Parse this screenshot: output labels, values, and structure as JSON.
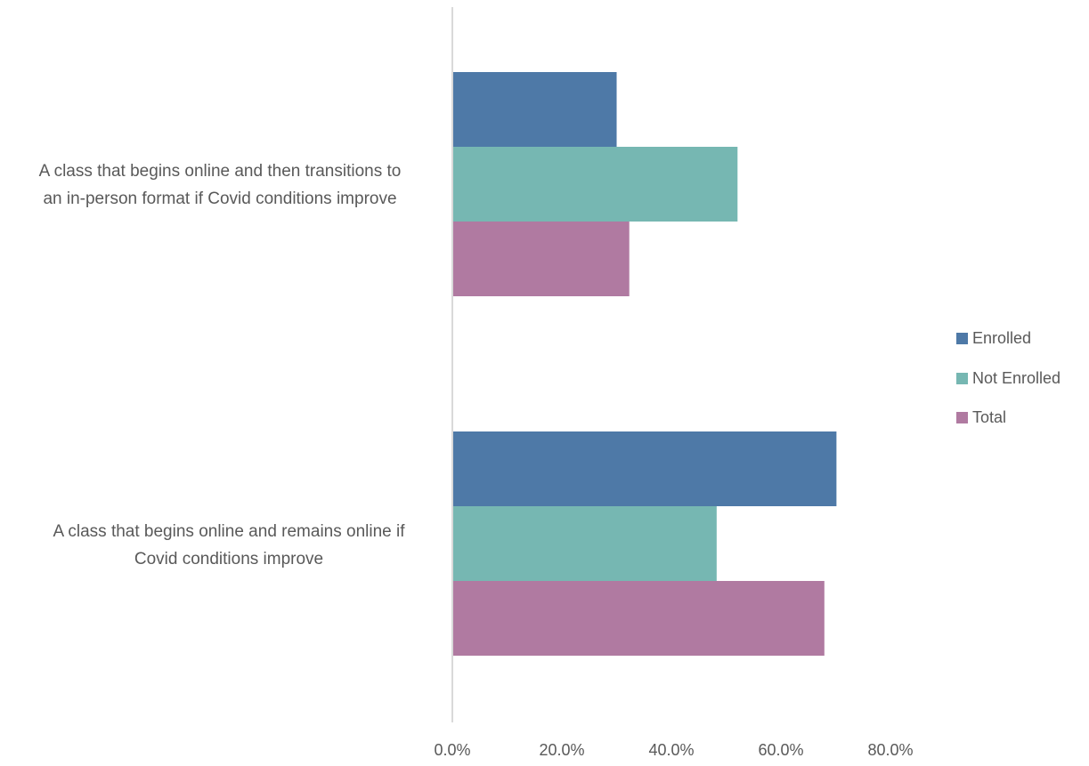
{
  "chart_data": {
    "type": "bar",
    "orientation": "horizontal",
    "title": "",
    "xlabel": "",
    "ylabel": "",
    "categories": [
      {
        "label": "A class that begins online and then transitions to an in-person format if Covid conditions improve",
        "lines": [
          "A class that begins online and then transitions to",
          "an in-person format if Covid conditions improve"
        ]
      },
      {
        "label": "A class that begins online and remains online if Covid conditions improve",
        "lines": [
          "A class that begins online and remains online if",
          "Covid conditions improve"
        ]
      }
    ],
    "series": [
      {
        "name": "Enrolled",
        "color": "#4e79a7",
        "values": [
          29.9,
          69.9
        ]
      },
      {
        "name": "Not Enrolled",
        "color": "#76b7b2",
        "values": [
          51.9,
          48.1
        ]
      },
      {
        "name": "Total",
        "color": "#b07aa1",
        "values": [
          32.2,
          67.7
        ]
      }
    ],
    "xlim": [
      0,
      80
    ],
    "x_ticks": [
      0,
      20,
      40,
      60,
      80
    ],
    "x_tick_labels": [
      "0.0%",
      "20.0%",
      "40.0%",
      "60.0%",
      "80.0%"
    ],
    "grid": false,
    "legend_position": "right"
  }
}
